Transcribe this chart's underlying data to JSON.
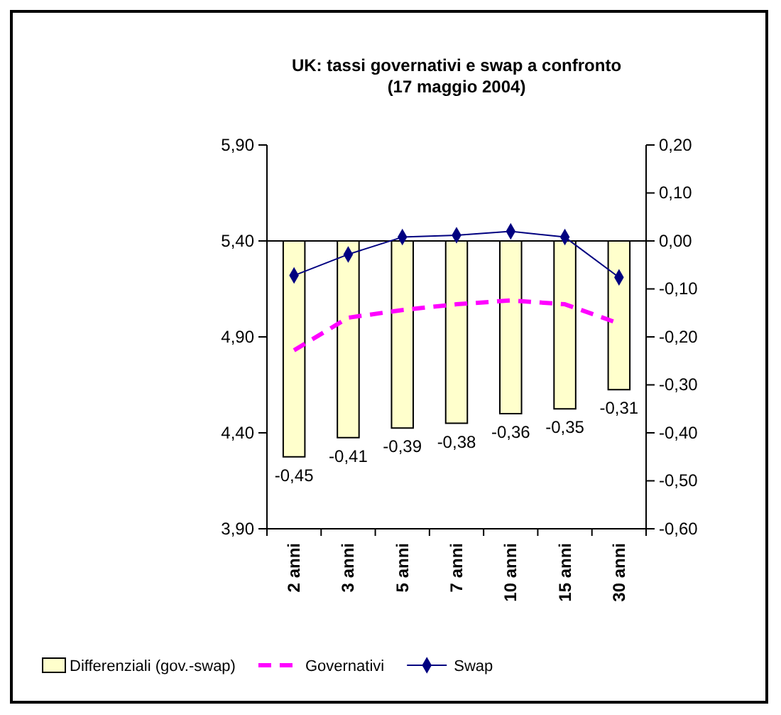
{
  "chart_data": {
    "type": "bar",
    "title": "UK: tassi governativi e swap a confronto\n(17 maggio 2004)",
    "categories": [
      "2 anni",
      "3 anni",
      "5 anni",
      "7 anni",
      "10 anni",
      "15 anni",
      "30 anni"
    ],
    "series": [
      {
        "name": "Differenziali (gov.-swap)",
        "axis": "y2",
        "color": "#ffffcc",
        "values": [
          -0.45,
          -0.41,
          -0.39,
          -0.38,
          -0.36,
          -0.35,
          -0.31
        ],
        "value_labels": [
          "-0,45",
          "-0,41",
          "-0,39",
          "-0,38",
          "-0,36",
          "-0,35",
          "-0,31"
        ]
      },
      {
        "name": "Governativi",
        "type": "line",
        "color": "#ff00ff",
        "line_style": "dashed",
        "marker": "none",
        "values": [
          4.83,
          5.0,
          5.04,
          5.07,
          5.09,
          5.07,
          4.97
        ]
      },
      {
        "name": "Swap",
        "type": "line",
        "color": "#000080",
        "line_style": "solid",
        "marker": "diamond",
        "values": [
          5.22,
          5.33,
          5.42,
          5.43,
          5.45,
          5.42,
          5.21
        ]
      }
    ],
    "ylim": [
      3.9,
      5.9
    ],
    "yticks": [
      {
        "value": 3.9,
        "label": "3,90"
      },
      {
        "value": 4.4,
        "label": "4,40"
      },
      {
        "value": 4.9,
        "label": "4,90"
      },
      {
        "value": 5.4,
        "label": "5,40"
      },
      {
        "value": 5.9,
        "label": "5,90"
      }
    ],
    "y2lim": [
      -0.6,
      0.2
    ],
    "y2ticks": [
      {
        "value": -0.6,
        "label": "-0,60"
      },
      {
        "value": -0.5,
        "label": "-0,50"
      },
      {
        "value": -0.4,
        "label": "-0,40"
      },
      {
        "value": -0.3,
        "label": "-0,30"
      },
      {
        "value": -0.2,
        "label": "-0,20"
      },
      {
        "value": -0.1,
        "label": "-0,10"
      },
      {
        "value": 0,
        "label": "0,00"
      },
      {
        "value": 0.1,
        "label": "0,10"
      },
      {
        "value": 0.2,
        "label": "0,20"
      }
    ],
    "legend": "bottom"
  }
}
